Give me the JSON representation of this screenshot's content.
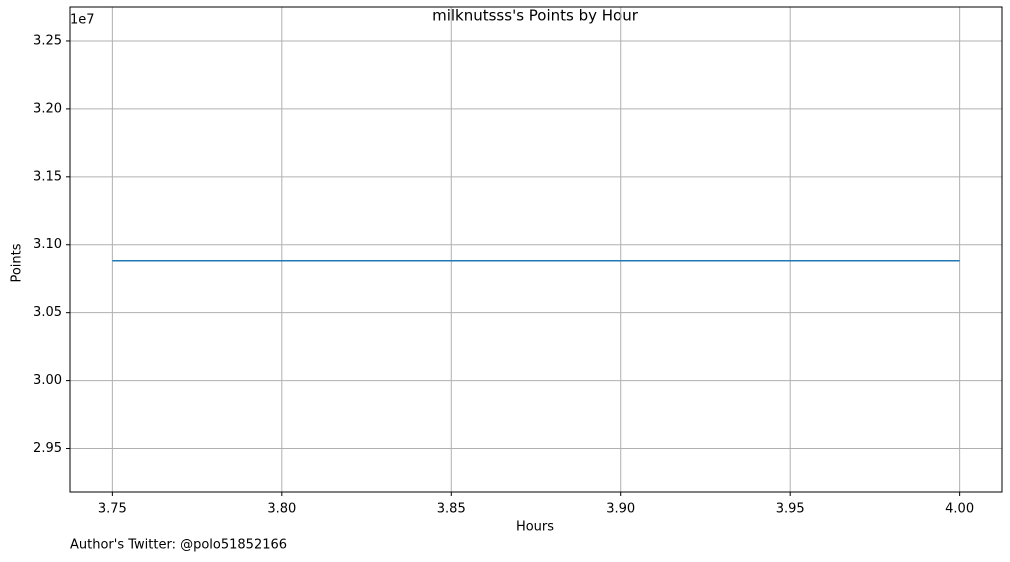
{
  "chart_data": {
    "type": "line",
    "title": "milknutsss's Points by Hour",
    "x_label": "Hours",
    "y_label": "Points",
    "y_offset_label": "1e7",
    "footnote": "Author's Twitter: @polo51852166",
    "x": [
      3.75,
      4.0
    ],
    "series": [
      {
        "name": "Points",
        "color": "#1f77b4",
        "values": [
          30882000,
          30882000
        ]
      }
    ],
    "xlim": [
      3.7375,
      4.0125
    ],
    "xticks": [
      3.75,
      {
        "value": 3.8,
        "label": "3.80"
      },
      3.85,
      {
        "value": 3.9,
        "label": "3.90"
      },
      3.95,
      {
        "value": 4.0,
        "label": "4.00"
      }
    ],
    "ylim": [
      29180000,
      32750000
    ],
    "yticks": [
      {
        "value": 29500000,
        "label": "2.95"
      },
      {
        "value": 30000000,
        "label": "3.00"
      },
      {
        "value": 30500000,
        "label": "3.05"
      },
      {
        "value": 31000000,
        "label": "3.10"
      },
      {
        "value": 31500000,
        "label": "3.15"
      },
      {
        "value": 32000000,
        "label": "3.20"
      },
      {
        "value": 32500000,
        "label": "3.25"
      }
    ],
    "grid": true
  }
}
